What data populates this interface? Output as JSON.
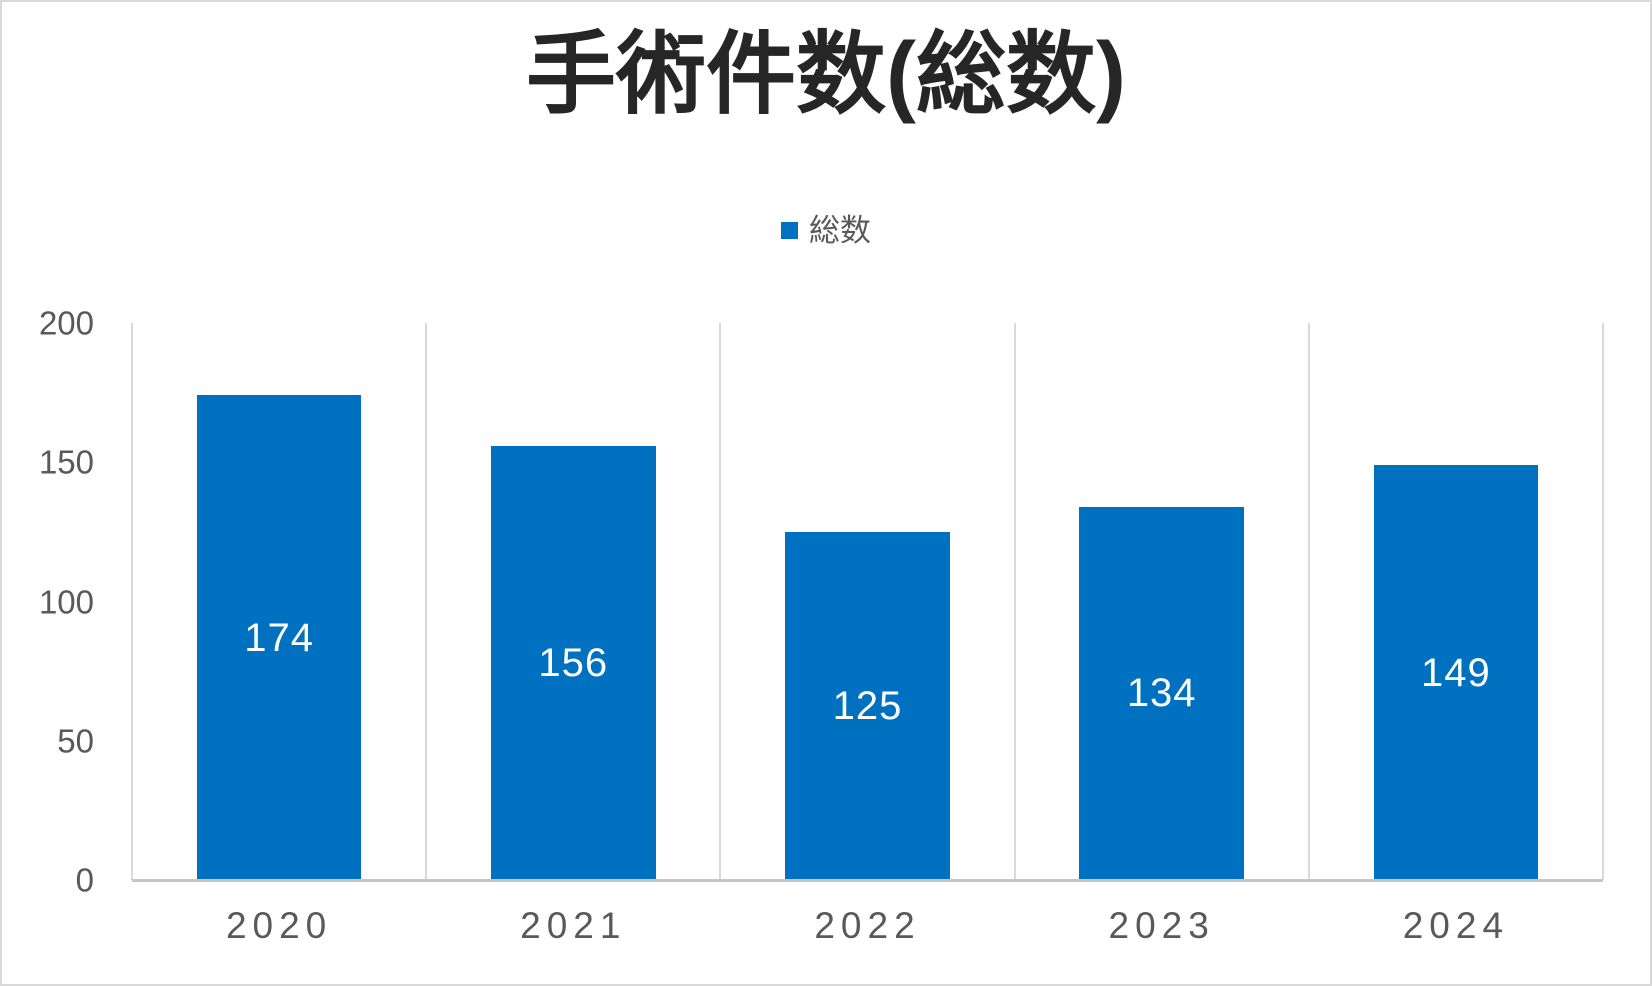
{
  "chart_data": {
    "type": "bar",
    "title": "手術件数(総数)",
    "categories": [
      "2020",
      "2021",
      "2022",
      "2023",
      "2024"
    ],
    "series": [
      {
        "name": "総数",
        "values": [
          174,
          156,
          125,
          134,
          149
        ],
        "color": "#0070C0"
      }
    ],
    "data_labels": {
      "position": "center-inside",
      "color": "#ffffff"
    },
    "xlabel": "",
    "ylabel": "",
    "ylim": [
      0,
      200
    ],
    "yticks": [
      0,
      50,
      100,
      150,
      200
    ],
    "grid": {
      "vertical_category_boundaries": true,
      "horizontal": false
    },
    "legend": {
      "position": "top-center",
      "entries": [
        {
          "label": "総数",
          "swatch_color": "#0070C0"
        }
      ]
    },
    "colors": {
      "bar": "#0070C0",
      "title_text": "#262626",
      "axis_text": "#595959",
      "gridline": "#d9d9d9",
      "axis_line": "#c6c6c6",
      "data_label": "#ffffff",
      "background": "#ffffff",
      "canvas_border": "#d9d9d9"
    }
  }
}
